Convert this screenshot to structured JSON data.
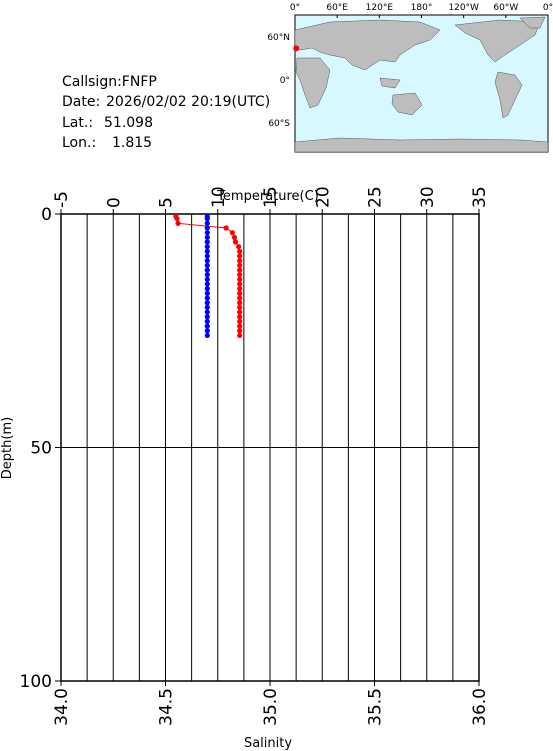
{
  "info": {
    "callsign": "Callsign:FNFP",
    "date_label": "Date:",
    "date": "2026/02/02 20:19(UTC)",
    "lat_label": "Lat.:",
    "lat": 51.098,
    "lon_label": "Lon.:",
    "lon": 1.815
  },
  "map": {
    "lon_labels": [
      "0°",
      "60°E",
      "120°E",
      "180°",
      "120°W",
      "60°W",
      "0°"
    ],
    "lat_labels": [
      "60°N",
      "0°",
      "60°S"
    ]
  },
  "chart_data": {
    "type": "line",
    "xlabel": "Temperature(C)",
    "x2label": "Salinity",
    "ylabel": "Depth(m)",
    "xlim": [
      -5,
      35
    ],
    "xticks": [
      -5,
      0,
      5,
      10,
      15,
      20,
      25,
      30,
      35
    ],
    "xgrid": [
      -2.5,
      0,
      2.5,
      5,
      7.5,
      10,
      12.5,
      15,
      17.5,
      20,
      22.5,
      25,
      27.5,
      30,
      32.5
    ],
    "x2lim": [
      34,
      36
    ],
    "x2ticks": [
      {
        "value": 34,
        "label": "34.0"
      },
      {
        "value": 34.5,
        "label": "34.5"
      },
      {
        "value": 35,
        "label": "35.0"
      },
      {
        "value": 35.5,
        "label": "35.5"
      },
      {
        "value": 36,
        "label": "36.0"
      }
    ],
    "ylim": [
      0,
      100
    ],
    "yticks": [
      0,
      50,
      100
    ],
    "y_inverted": true,
    "grid": true,
    "y": [
      0.5,
      1,
      2,
      3,
      4,
      5,
      6,
      7,
      8,
      9,
      10,
      11,
      12,
      13,
      14,
      15,
      16,
      17,
      18,
      19,
      20,
      21,
      22,
      23,
      24,
      25,
      26
    ],
    "series": [
      {
        "color": "#ff0000",
        "axis": "x",
        "values": [
          6.0,
          6.1,
          6.2,
          10.8,
          11.4,
          11.6,
          11.7,
          12.0,
          12.1,
          12.1,
          12.1,
          12.1,
          12.1,
          12.1,
          12.1,
          12.1,
          12.1,
          12.1,
          12.1,
          12.1,
          12.1,
          12.1,
          12.1,
          12.1,
          12.1,
          12.1,
          12.1
        ]
      },
      {
        "color": "#0000ff",
        "axis": "x2",
        "values": [
          34.7,
          34.7,
          34.7,
          34.7,
          34.7,
          34.7,
          34.7,
          34.7,
          34.7,
          34.7,
          34.7,
          34.7,
          34.7,
          34.7,
          34.7,
          34.7,
          34.7,
          34.7,
          34.7,
          34.7,
          34.7,
          34.7,
          34.7,
          34.7,
          34.7,
          34.7,
          34.7
        ]
      }
    ]
  }
}
